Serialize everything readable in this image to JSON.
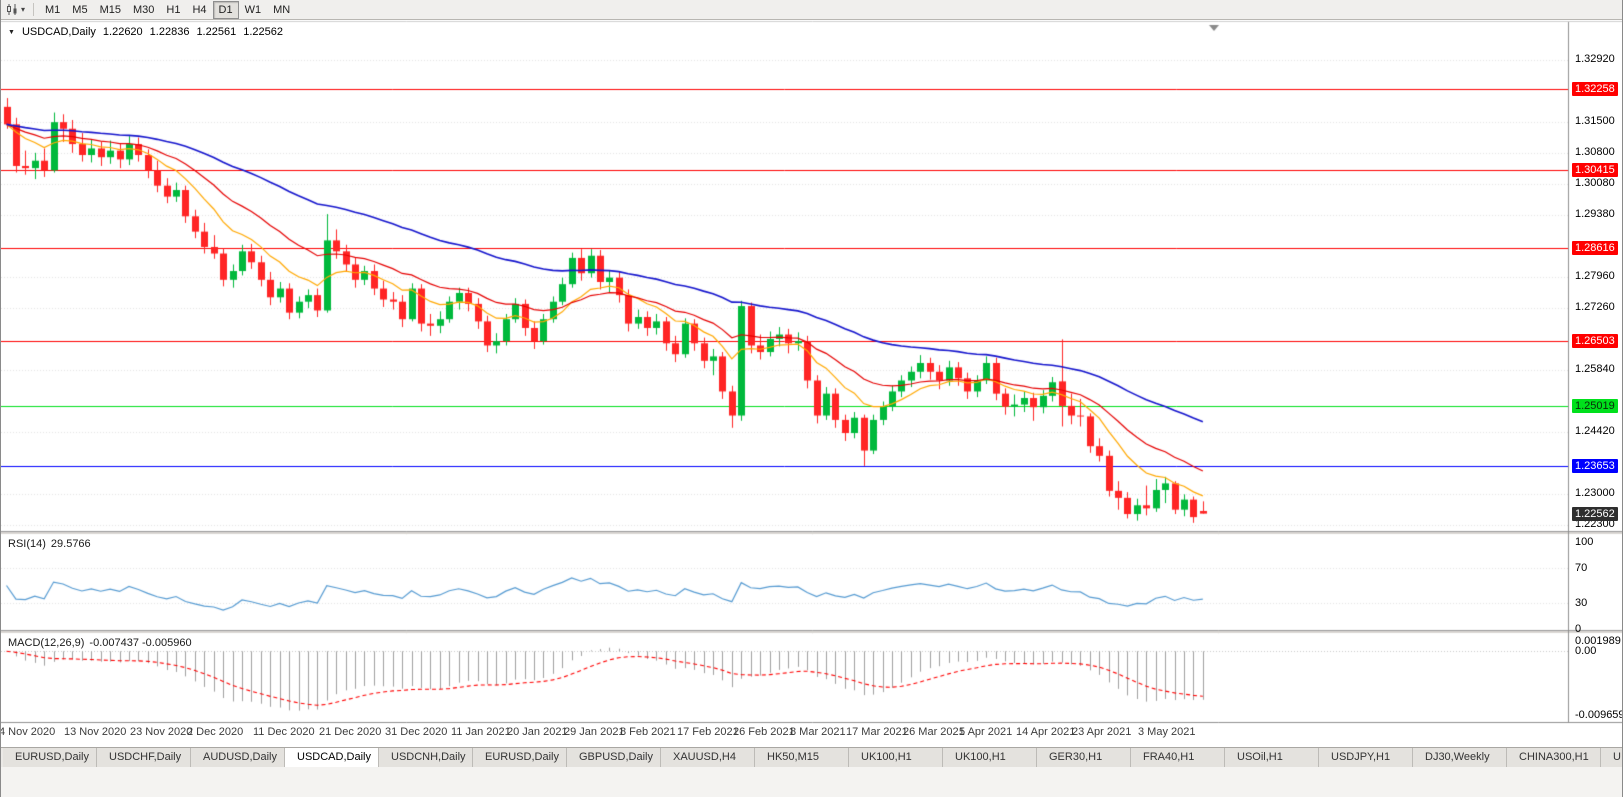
{
  "toolbar": {
    "chart_menu_icon": "candlestick-chart-icon",
    "timeframes": [
      "M1",
      "M5",
      "M15",
      "M30",
      "H1",
      "H4",
      "D1",
      "W1",
      "MN"
    ],
    "active_timeframe": "D1"
  },
  "readout": {
    "symbol": "USDCAD,Daily",
    "open": "1.22620",
    "high": "1.22836",
    "low": "1.22561",
    "close": "1.22562"
  },
  "rsi_panel": {
    "title": "RSI(14)",
    "value": "29.5766"
  },
  "macd_panel": {
    "title": "MACD(12,26,9)",
    "values": "-0.007437 -0.005960"
  },
  "tabs": {
    "active_index": 3,
    "items": [
      "EURUSD,Daily",
      "USDCHF,Daily",
      "AUDUSD,Daily",
      "USDCAD,Daily",
      "USDCNH,Daily",
      "EURUSD,Daily",
      "GBPUSD,Daily",
      "XAUUSD,H4",
      "HK50,M15",
      "UK100,H1",
      "UK100,H1",
      "GER30,H1",
      "FRA40,H1",
      "USOil,H1",
      "USDJPY,H1",
      "DJ30,Weekly",
      "CHINA300,H1",
      "U"
    ]
  },
  "chart_data": {
    "type": "candlestick",
    "symbol": "USDCAD",
    "timeframe": "Daily",
    "title": "USDCAD,Daily",
    "last_price": 1.22562,
    "y_axis_ticks": [
      1.3292,
      1.315,
      1.308,
      1.3008,
      1.2938,
      1.2796,
      1.2726,
      1.2584,
      1.2442,
      1.23,
      1.223
    ],
    "levels": [
      {
        "value": 1.32258,
        "type": "resistance",
        "color": "#ff0000",
        "text": "#ffffff"
      },
      {
        "value": 1.30415,
        "type": "resistance",
        "color": "#ff0000",
        "text": "#ffffff"
      },
      {
        "value": 1.28616,
        "type": "resistance",
        "color": "#ff0000",
        "text": "#ffffff"
      },
      {
        "value": 1.26503,
        "type": "resistance",
        "color": "#ff0000",
        "text": "#ffffff"
      },
      {
        "value": 1.25019,
        "type": "support",
        "color": "#00e01c",
        "text": "#0a2a0a"
      },
      {
        "value": 1.23653,
        "type": "support",
        "color": "#0000ff",
        "text": "#ffffff"
      }
    ],
    "moving_averages": [
      {
        "period": 10,
        "type": "ema",
        "color": "#ffa800"
      },
      {
        "period": 20,
        "type": "ema",
        "color": "#e60000"
      },
      {
        "period": 50,
        "type": "ema",
        "color": "#1515cd"
      }
    ],
    "rsi": {
      "period": 14,
      "last": 29.5766,
      "guide_levels": [
        70,
        30
      ],
      "axis": [
        {
          "label": "100",
          "value": 100
        },
        {
          "label": "70",
          "value": 70
        },
        {
          "label": "30",
          "value": 30
        },
        {
          "label": "0",
          "value": 0
        }
      ]
    },
    "macd": {
      "fast": 12,
      "slow": 26,
      "signal": 9,
      "last_macd": -0.007437,
      "last_signal": -0.00596,
      "scale": [
        -0.009659,
        0.001989
      ],
      "axis": [
        {
          "label": "0.001989",
          "value": 0.001989
        },
        {
          "label": "0.00",
          "value": 0
        },
        {
          "label": "-0.009659",
          "value": -0.009659
        }
      ]
    },
    "date_labels": [
      {
        "label": "4 Nov 2020",
        "i": 0
      },
      {
        "label": "13 Nov 2020",
        "i": 7
      },
      {
        "label": "23 Nov 2020",
        "i": 14
      },
      {
        "label": "2 Dec 2020",
        "i": 20
      },
      {
        "label": "11 Dec 2020",
        "i": 27
      },
      {
        "label": "21 Dec 2020",
        "i": 34
      },
      {
        "label": "31 Dec 2020",
        "i": 41
      },
      {
        "label": "11 Jan 2021",
        "i": 48
      },
      {
        "label": "20 Jan 2021",
        "i": 54
      },
      {
        "label": "29 Jan 2021",
        "i": 60
      },
      {
        "label": "8 Feb 2021",
        "i": 66
      },
      {
        "label": "17 Feb 2021",
        "i": 72
      },
      {
        "label": "26 Feb 2021",
        "i": 78
      },
      {
        "label": "8 Mar 2021",
        "i": 84
      },
      {
        "label": "17 Mar 2021",
        "i": 90
      },
      {
        "label": "26 Mar 2021",
        "i": 96
      },
      {
        "label": "5 Apr 2021",
        "i": 102
      },
      {
        "label": "14 Apr 2021",
        "i": 108
      },
      {
        "label": "23 Apr 2021",
        "i": 114
      },
      {
        "label": "3 May 2021",
        "i": 121
      }
    ],
    "colors": {
      "bull": "#00b93c",
      "bear": "#ff2525",
      "grid": "#e3e3e3",
      "rsi": "#569bd2",
      "macd_hist": "#9f9f9f",
      "macd_signal": "#ff0000",
      "price_badge_bg": "#2e2e2e"
    },
    "candles": [
      [
        1.3185,
        1.3205,
        1.3135,
        1.3145
      ],
      [
        1.3145,
        1.316,
        1.3035,
        1.305
      ],
      [
        1.305,
        1.3085,
        1.303,
        1.3045
      ],
      [
        1.3045,
        1.308,
        1.302,
        1.3062
      ],
      [
        1.3062,
        1.309,
        1.3025,
        1.304
      ],
      [
        1.304,
        1.3172,
        1.3035,
        1.315
      ],
      [
        1.315,
        1.3168,
        1.3105,
        1.3135
      ],
      [
        1.3135,
        1.3155,
        1.308,
        1.31
      ],
      [
        1.31,
        1.3125,
        1.306,
        1.3075
      ],
      [
        1.3075,
        1.311,
        1.3058,
        1.309
      ],
      [
        1.309,
        1.3105,
        1.305,
        1.307
      ],
      [
        1.307,
        1.3108,
        1.3055,
        1.3085
      ],
      [
        1.3085,
        1.31,
        1.3045,
        1.3065
      ],
      [
        1.3065,
        1.3118,
        1.3052,
        1.31
      ],
      [
        1.31,
        1.3115,
        1.306,
        1.3075
      ],
      [
        1.3075,
        1.3088,
        1.3022,
        1.304
      ],
      [
        1.304,
        1.3062,
        1.299,
        1.3005
      ],
      [
        1.3005,
        1.3022,
        1.2965,
        1.298
      ],
      [
        1.298,
        1.3012,
        1.2968,
        1.2995
      ],
      [
        1.2995,
        1.3005,
        1.292,
        1.2935
      ],
      [
        1.2935,
        1.295,
        1.2885,
        1.29
      ],
      [
        1.29,
        1.292,
        1.285,
        1.2865
      ],
      [
        1.2865,
        1.2892,
        1.2838,
        1.285
      ],
      [
        1.285,
        1.2862,
        1.2775,
        1.279
      ],
      [
        1.279,
        1.2825,
        1.2772,
        1.281
      ],
      [
        1.281,
        1.287,
        1.28,
        1.2855
      ],
      [
        1.2855,
        1.2872,
        1.2815,
        1.283
      ],
      [
        1.283,
        1.2845,
        1.2775,
        1.279
      ],
      [
        1.279,
        1.2808,
        1.2732,
        1.275
      ],
      [
        1.275,
        1.2785,
        1.2738,
        1.277
      ],
      [
        1.277,
        1.2782,
        1.27,
        1.2715
      ],
      [
        1.2715,
        1.2752,
        1.2702,
        1.274
      ],
      [
        1.274,
        1.2768,
        1.2725,
        1.2755
      ],
      [
        1.2755,
        1.277,
        1.2705,
        1.272
      ],
      [
        1.272,
        1.294,
        1.2715,
        1.288
      ],
      [
        1.288,
        1.2905,
        1.2838,
        1.2855
      ],
      [
        1.2855,
        1.287,
        1.2808,
        1.2825
      ],
      [
        1.2825,
        1.284,
        1.2772,
        1.279
      ],
      [
        1.279,
        1.2822,
        1.2778,
        1.281
      ],
      [
        1.281,
        1.2825,
        1.2755,
        1.277
      ],
      [
        1.277,
        1.2788,
        1.2728,
        1.2745
      ],
      [
        1.2745,
        1.2762,
        1.2722,
        1.274
      ],
      [
        1.274,
        1.2755,
        1.2682,
        1.27
      ],
      [
        1.27,
        1.2782,
        1.2695,
        1.277
      ],
      [
        1.277,
        1.278,
        1.2672,
        1.269
      ],
      [
        1.269,
        1.2712,
        1.2662,
        1.2685
      ],
      [
        1.2685,
        1.2718,
        1.2668,
        1.27
      ],
      [
        1.27,
        1.2752,
        1.2692,
        1.274
      ],
      [
        1.274,
        1.2772,
        1.2722,
        1.276
      ],
      [
        1.276,
        1.2772,
        1.2718,
        1.2735
      ],
      [
        1.2735,
        1.2748,
        1.2678,
        1.2695
      ],
      [
        1.2695,
        1.2708,
        1.2625,
        1.264
      ],
      [
        1.264,
        1.2668,
        1.2622,
        1.265
      ],
      [
        1.265,
        1.2712,
        1.264,
        1.27
      ],
      [
        1.27,
        1.2748,
        1.2692,
        1.2735
      ],
      [
        1.2735,
        1.2745,
        1.2662,
        1.268
      ],
      [
        1.268,
        1.2695,
        1.2632,
        1.265
      ],
      [
        1.265,
        1.2712,
        1.2642,
        1.27
      ],
      [
        1.27,
        1.2752,
        1.2692,
        1.274
      ],
      [
        1.274,
        1.2795,
        1.2732,
        1.278
      ],
      [
        1.278,
        1.2852,
        1.2772,
        1.284
      ],
      [
        1.284,
        1.286,
        1.2788,
        1.2805
      ],
      [
        1.2805,
        1.286,
        1.2795,
        1.2845
      ],
      [
        1.2845,
        1.2858,
        1.2768,
        1.2785
      ],
      [
        1.2785,
        1.2812,
        1.2762,
        1.2795
      ],
      [
        1.2795,
        1.2808,
        1.2738,
        1.2755
      ],
      [
        1.2755,
        1.2768,
        1.2672,
        1.269
      ],
      [
        1.269,
        1.2722,
        1.2678,
        1.2705
      ],
      [
        1.2705,
        1.2718,
        1.2662,
        1.268
      ],
      [
        1.268,
        1.2712,
        1.2665,
        1.2695
      ],
      [
        1.2695,
        1.2705,
        1.2628,
        1.2645
      ],
      [
        1.2645,
        1.2662,
        1.2602,
        1.262
      ],
      [
        1.262,
        1.2702,
        1.2612,
        1.269
      ],
      [
        1.269,
        1.27,
        1.2628,
        1.2645
      ],
      [
        1.2645,
        1.2658,
        1.2588,
        1.2605
      ],
      [
        1.2605,
        1.2632,
        1.2572,
        1.2615
      ],
      [
        1.2615,
        1.2625,
        1.2518,
        1.2535
      ],
      [
        1.2535,
        1.2548,
        1.2452,
        1.248
      ],
      [
        1.248,
        1.2742,
        1.2468,
        1.273
      ],
      [
        1.273,
        1.2738,
        1.2622,
        1.264
      ],
      [
        1.264,
        1.2665,
        1.2608,
        1.2625
      ],
      [
        1.2625,
        1.2672,
        1.2615,
        1.2655
      ],
      [
        1.2655,
        1.2682,
        1.2638,
        1.2665
      ],
      [
        1.2665,
        1.2678,
        1.2622,
        1.2645
      ],
      [
        1.2645,
        1.267,
        1.2628,
        1.265
      ],
      [
        1.265,
        1.2662,
        1.2542,
        1.256
      ],
      [
        1.256,
        1.2572,
        1.2462,
        1.248
      ],
      [
        1.248,
        1.2545,
        1.247,
        1.253
      ],
      [
        1.253,
        1.2542,
        1.2452,
        1.247
      ],
      [
        1.247,
        1.2482,
        1.2422,
        1.244
      ],
      [
        1.244,
        1.2488,
        1.2428,
        1.2475
      ],
      [
        1.2475,
        1.2482,
        1.2365,
        1.24
      ],
      [
        1.24,
        1.2482,
        1.2392,
        1.247
      ],
      [
        1.247,
        1.2512,
        1.2458,
        1.25
      ],
      [
        1.25,
        1.2548,
        1.249,
        1.2535
      ],
      [
        1.2535,
        1.2572,
        1.2522,
        1.256
      ],
      [
        1.256,
        1.2592,
        1.2545,
        1.258
      ],
      [
        1.258,
        1.2618,
        1.2565,
        1.26
      ],
      [
        1.26,
        1.2612,
        1.2562,
        1.258
      ],
      [
        1.258,
        1.2595,
        1.254,
        1.256
      ],
      [
        1.256,
        1.2605,
        1.2548,
        1.259
      ],
      [
        1.259,
        1.2602,
        1.2548,
        1.2565
      ],
      [
        1.2565,
        1.2578,
        1.2518,
        1.2535
      ],
      [
        1.2535,
        1.2572,
        1.2522,
        1.256
      ],
      [
        1.256,
        1.2615,
        1.2552,
        1.26
      ],
      [
        1.26,
        1.2612,
        1.2515,
        1.253
      ],
      [
        1.253,
        1.2542,
        1.2482,
        1.25
      ],
      [
        1.25,
        1.2528,
        1.2478,
        1.2505
      ],
      [
        1.2505,
        1.2535,
        1.2488,
        1.252
      ],
      [
        1.252,
        1.2532,
        1.2468,
        1.2499
      ],
      [
        1.2499,
        1.2538,
        1.2485,
        1.2525
      ],
      [
        1.2525,
        1.2568,
        1.2512,
        1.2556
      ],
      [
        1.2558,
        1.2654,
        1.2455,
        1.2502
      ],
      [
        1.2502,
        1.253,
        1.246,
        1.248
      ],
      [
        1.248,
        1.2518,
        1.2455,
        1.2478
      ],
      [
        1.2478,
        1.2485,
        1.2395,
        1.241
      ],
      [
        1.241,
        1.2428,
        1.2375,
        1.2388
      ],
      [
        1.2388,
        1.24,
        1.2295,
        1.2308
      ],
      [
        1.2308,
        1.233,
        1.2265,
        1.2292
      ],
      [
        1.2292,
        1.2305,
        1.2245,
        1.2255
      ],
      [
        1.2255,
        1.229,
        1.224,
        1.2275
      ],
      [
        1.2275,
        1.232,
        1.2252,
        1.2268
      ],
      [
        1.2268,
        1.2335,
        1.226,
        1.231
      ],
      [
        1.231,
        1.234,
        1.228,
        1.2325
      ],
      [
        1.2325,
        1.233,
        1.2255,
        1.2265
      ],
      [
        1.2265,
        1.23,
        1.225,
        1.2288
      ],
      [
        1.2288,
        1.2295,
        1.2235,
        1.2248
      ],
      [
        1.2262,
        1.2284,
        1.2256,
        1.2256
      ]
    ]
  }
}
